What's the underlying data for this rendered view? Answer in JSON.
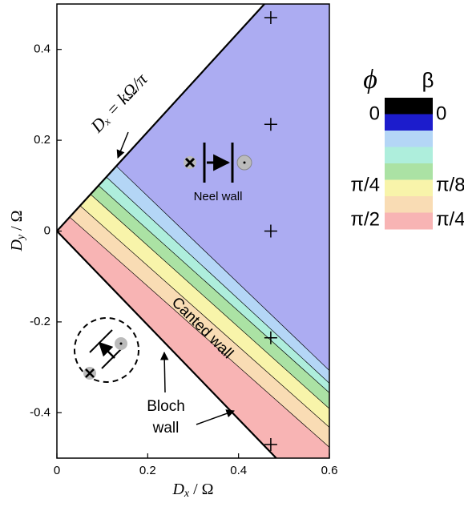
{
  "chart_data": {
    "type": "phase",
    "x_label": [
      "D",
      "x",
      " / Ω"
    ],
    "y_label": [
      "D",
      "y",
      " / Ω"
    ],
    "xlim": [
      0,
      0.6
    ],
    "xticks": [
      0,
      0.2,
      0.4,
      0.6
    ],
    "ylim": [
      -0.5,
      0.5
    ],
    "yticks": [
      -0.4,
      -0.2,
      0,
      0.2,
      0.4
    ],
    "regions": [
      {
        "color": "#f8b4b4",
        "points": [
          [
            0,
            0
          ],
          [
            0.028,
            0.031
          ],
          [
            0.6,
            -0.476
          ],
          [
            0.6,
            -0.5
          ],
          [
            0.483,
            -0.5
          ]
        ]
      },
      {
        "color": "#f9dcb4",
        "points": [
          [
            0.028,
            0.031
          ],
          [
            0.051,
            0.056
          ],
          [
            0.6,
            -0.432
          ],
          [
            0.6,
            -0.476
          ]
        ]
      },
      {
        "color": "#f8f4aa",
        "points": [
          [
            0.051,
            0.056
          ],
          [
            0.074,
            0.081
          ],
          [
            0.6,
            -0.391
          ],
          [
            0.6,
            -0.432
          ]
        ]
      },
      {
        "color": "#abe2a4",
        "points": [
          [
            0.074,
            0.081
          ],
          [
            0.092,
            0.1
          ],
          [
            0.6,
            -0.356
          ],
          [
            0.6,
            -0.391
          ]
        ]
      },
      {
        "color": "#aeeedc",
        "points": [
          [
            0.092,
            0.1
          ],
          [
            0.109,
            0.119
          ],
          [
            0.6,
            -0.335
          ],
          [
            0.6,
            -0.356
          ]
        ]
      },
      {
        "color": "#b4d6f6",
        "points": [
          [
            0.109,
            0.119
          ],
          [
            0.131,
            0.143
          ],
          [
            0.6,
            -0.307
          ],
          [
            0.6,
            -0.335
          ]
        ]
      },
      {
        "color": "#acacf2",
        "points": [
          [
            0.131,
            0.143
          ],
          [
            0.457,
            0.5
          ],
          [
            0.6,
            0.5
          ],
          [
            0.6,
            -0.307
          ]
        ]
      }
    ],
    "walls": [
      [
        [
          0,
          0
        ],
        [
          0.457,
          0.5
        ]
      ],
      [
        [
          0,
          0
        ],
        [
          0.483,
          -0.5
        ]
      ]
    ],
    "markers": {
      "x": [
        0.471,
        0.471,
        0.471,
        0.471,
        0.471
      ],
      "y": [
        0.47,
        0.235,
        0,
        -0.235,
        -0.47
      ]
    },
    "annotations": {
      "boundary_label": "Dₓ = kΩ/π",
      "neel": "Neel wall",
      "canted": "Canted wall",
      "bloch": [
        "Bloch",
        "wall"
      ]
    },
    "legend": {
      "phi_symbol": "ϕ",
      "beta_symbol": "β",
      "colors": [
        "#000000",
        "#1c1ccc",
        "#b4d6f6",
        "#aeeedc",
        "#abe2a4",
        "#f8f4aa",
        "#f9dcb4",
        "#f8b4b4"
      ],
      "phi_labels": [
        "0",
        "π/4",
        "π/2"
      ],
      "beta_labels": [
        "0",
        "π/8",
        "π/4"
      ]
    }
  }
}
